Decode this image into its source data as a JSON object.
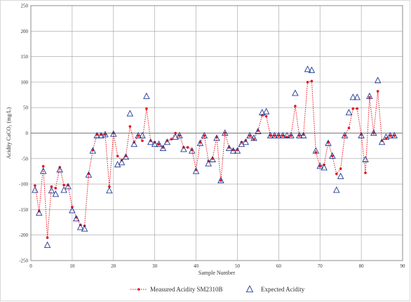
{
  "chart_data": {
    "type": "scatter",
    "xlabel": "Sample Number",
    "ylabel": "Acidity CaCO₃ (mg/L)",
    "xlim": [
      0,
      90
    ],
    "ylim": [
      -250,
      250
    ],
    "x_ticks": [
      0,
      10,
      20,
      30,
      40,
      50,
      60,
      70,
      80,
      90
    ],
    "y_ticks": [
      -250,
      -200,
      -150,
      -100,
      -50,
      0,
      50,
      100,
      150,
      200,
      250
    ],
    "grid": true,
    "legend_position": "bottom",
    "series": [
      {
        "name": "Measured Acidity SM2310B",
        "style": "dotted line with dot markers",
        "color": "#e8141e",
        "points": [
          [
            1,
            -103
          ],
          [
            2,
            -153
          ],
          [
            3,
            -65
          ],
          [
            4,
            -205
          ],
          [
            5,
            -105
          ],
          [
            6,
            -108
          ],
          [
            7,
            -67
          ],
          [
            8,
            -102
          ],
          [
            9,
            -102
          ],
          [
            10,
            -145
          ],
          [
            11,
            -165
          ],
          [
            12,
            -180
          ],
          [
            13,
            -182
          ],
          [
            14,
            -80
          ],
          [
            15,
            -33
          ],
          [
            16,
            -3
          ],
          [
            17,
            -3
          ],
          [
            18,
            -3
          ],
          [
            19,
            -105
          ],
          [
            20,
            0
          ],
          [
            21,
            -45
          ],
          [
            22,
            -53
          ],
          [
            23,
            -45
          ],
          [
            24,
            13
          ],
          [
            25,
            -18
          ],
          [
            26,
            -5
          ],
          [
            27,
            -15
          ],
          [
            28,
            48
          ],
          [
            29,
            -15
          ],
          [
            30,
            -18
          ],
          [
            31,
            -22
          ],
          [
            32,
            -28
          ],
          [
            33,
            -15
          ],
          [
            34,
            -12
          ],
          [
            35,
            0
          ],
          [
            36,
            -5
          ],
          [
            37,
            -28
          ],
          [
            38,
            -28
          ],
          [
            39,
            -33
          ],
          [
            40,
            -72
          ],
          [
            41,
            -18
          ],
          [
            42,
            -5
          ],
          [
            43,
            -55
          ],
          [
            44,
            -50
          ],
          [
            45,
            -8
          ],
          [
            46,
            -93
          ],
          [
            47,
            0
          ],
          [
            48,
            -28
          ],
          [
            49,
            -33
          ],
          [
            50,
            -33
          ],
          [
            51,
            -18
          ],
          [
            52,
            -15
          ],
          [
            53,
            -5
          ],
          [
            54,
            -12
          ],
          [
            55,
            5
          ],
          [
            56,
            35
          ],
          [
            57,
            33
          ],
          [
            58,
            -5
          ],
          [
            59,
            -5
          ],
          [
            60,
            -5
          ],
          [
            61,
            -5
          ],
          [
            62,
            -8
          ],
          [
            63,
            -5
          ],
          [
            64,
            53
          ],
          [
            65,
            -5
          ],
          [
            66,
            -3
          ],
          [
            67,
            100
          ],
          [
            68,
            102
          ],
          [
            69,
            -38
          ],
          [
            70,
            -65
          ],
          [
            71,
            -62
          ],
          [
            72,
            -18
          ],
          [
            73,
            -45
          ],
          [
            74,
            -80
          ],
          [
            75,
            -70
          ],
          [
            76,
            -5
          ],
          [
            77,
            10
          ],
          [
            78,
            48
          ],
          [
            79,
            48
          ],
          [
            80,
            -3
          ],
          [
            81,
            -78
          ],
          [
            82,
            70
          ],
          [
            83,
            0
          ],
          [
            84,
            82
          ],
          [
            85,
            -15
          ],
          [
            86,
            -10
          ],
          [
            87,
            -5
          ],
          [
            88,
            -5
          ]
        ]
      },
      {
        "name": "Expected Acidity",
        "style": "open triangle markers",
        "color": "#1f3a93",
        "points": [
          [
            1,
            -112
          ],
          [
            2,
            -157
          ],
          [
            3,
            -75
          ],
          [
            4,
            -220
          ],
          [
            5,
            -113
          ],
          [
            6,
            -120
          ],
          [
            7,
            -72
          ],
          [
            8,
            -112
          ],
          [
            9,
            -105
          ],
          [
            10,
            -152
          ],
          [
            11,
            -168
          ],
          [
            12,
            -185
          ],
          [
            13,
            -188
          ],
          [
            14,
            -82
          ],
          [
            15,
            -35
          ],
          [
            16,
            -5
          ],
          [
            17,
            -5
          ],
          [
            18,
            -3
          ],
          [
            19,
            -113
          ],
          [
            20,
            -2
          ],
          [
            21,
            -62
          ],
          [
            22,
            -58
          ],
          [
            23,
            -47
          ],
          [
            24,
            38
          ],
          [
            25,
            -22
          ],
          [
            26,
            -5
          ],
          [
            27,
            -5
          ],
          [
            28,
            72
          ],
          [
            29,
            -18
          ],
          [
            30,
            -22
          ],
          [
            31,
            -22
          ],
          [
            32,
            -30
          ],
          [
            33,
            -18
          ],
          [
            35,
            -8
          ],
          [
            36,
            -5
          ],
          [
            37,
            -32
          ],
          [
            39,
            -35
          ],
          [
            40,
            -75
          ],
          [
            41,
            -20
          ],
          [
            42,
            -5
          ],
          [
            43,
            -60
          ],
          [
            44,
            -52
          ],
          [
            45,
            -10
          ],
          [
            46,
            -93
          ],
          [
            47,
            0
          ],
          [
            48,
            -30
          ],
          [
            49,
            -35
          ],
          [
            50,
            -35
          ],
          [
            51,
            -22
          ],
          [
            52,
            -18
          ],
          [
            53,
            -5
          ],
          [
            54,
            -10
          ],
          [
            55,
            3
          ],
          [
            56,
            40
          ],
          [
            57,
            42
          ],
          [
            58,
            -5
          ],
          [
            59,
            -5
          ],
          [
            60,
            -5
          ],
          [
            61,
            -5
          ],
          [
            62,
            -5
          ],
          [
            63,
            -5
          ],
          [
            64,
            78
          ],
          [
            65,
            -5
          ],
          [
            66,
            -5
          ],
          [
            67,
            125
          ],
          [
            68,
            123
          ],
          [
            69,
            -35
          ],
          [
            70,
            -65
          ],
          [
            71,
            -68
          ],
          [
            72,
            -20
          ],
          [
            73,
            -45
          ],
          [
            74,
            -112
          ],
          [
            75,
            -85
          ],
          [
            76,
            -5
          ],
          [
            77,
            40
          ],
          [
            78,
            70
          ],
          [
            79,
            70
          ],
          [
            80,
            -5
          ],
          [
            81,
            -52
          ],
          [
            82,
            72
          ],
          [
            83,
            0
          ],
          [
            84,
            103
          ],
          [
            85,
            -18
          ],
          [
            86,
            -8
          ],
          [
            87,
            -5
          ],
          [
            88,
            -5
          ]
        ]
      }
    ]
  }
}
